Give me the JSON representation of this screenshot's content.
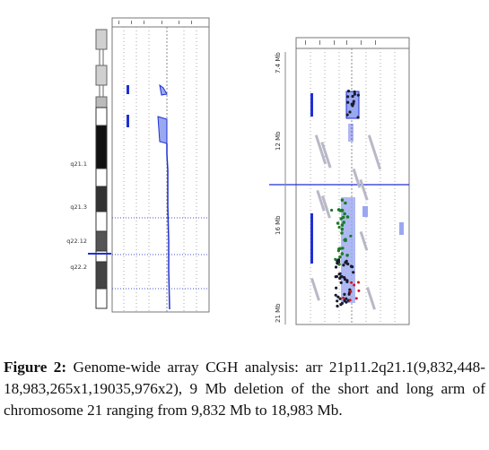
{
  "left_panel": {
    "band_labels": [
      "q21.1",
      "q21.3",
      "q22.12",
      "q22.2"
    ]
  },
  "right_panel": {
    "position_labels": [
      "7.4 Mb",
      "12 Mb",
      "16 Mb",
      "21 Mb"
    ]
  },
  "caption": {
    "lead": "Figure 2:",
    "text": " Genome-wide array CGH analysis: arr 21p11.2q21.1(9,832,448-18,983,265x1,19035,976x2), 9 Mb deletion of the short and long arm of chromosome 21 ranging from 9,832 Mb to 18,983 Mb."
  },
  "colors": {
    "profile": "#1f2fd6",
    "fill": "#9aa8f0",
    "marker": "#1d7a2a"
  }
}
